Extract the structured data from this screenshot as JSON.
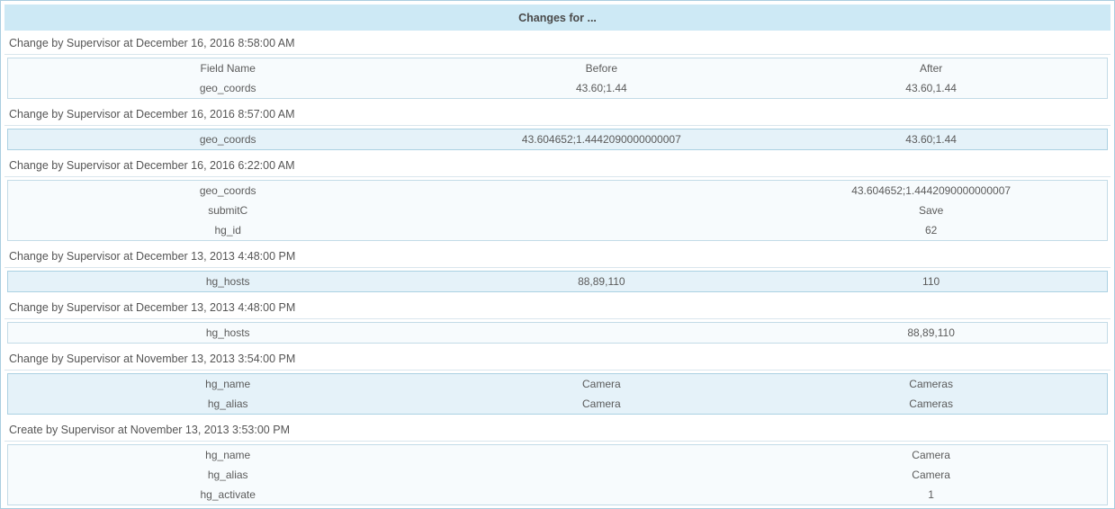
{
  "title": "Changes for ...",
  "table": {
    "columns": [
      {
        "key": "field",
        "label": "Field Name"
      },
      {
        "key": "before",
        "label": "Before"
      },
      {
        "key": "after",
        "label": "After"
      }
    ]
  },
  "sections": [
    {
      "header": "Change by Supervisor at December 16, 2016 8:58:00 AM",
      "show_columns": true,
      "rows": [
        {
          "field": "geo_coords",
          "before": "43.60;1.44",
          "after": "43.60,1.44"
        }
      ]
    },
    {
      "header": "Change by Supervisor at December 16, 2016 8:57:00 AM",
      "show_columns": false,
      "rows": [
        {
          "field": "geo_coords",
          "before": "43.604652;1.4442090000000007",
          "after": "43.60;1.44"
        }
      ]
    },
    {
      "header": "Change by Supervisor at December 16, 2016 6:22:00 AM",
      "show_columns": false,
      "rows": [
        {
          "field": "geo_coords",
          "before": "",
          "after": "43.604652;1.4442090000000007"
        },
        {
          "field": "submitC",
          "before": "",
          "after": "Save"
        },
        {
          "field": "hg_id",
          "before": "",
          "after": "62"
        }
      ]
    },
    {
      "header": "Change by Supervisor at December 13, 2013 4:48:00 PM",
      "show_columns": false,
      "rows": [
        {
          "field": "hg_hosts",
          "before": "88,89,110",
          "after": "110"
        }
      ]
    },
    {
      "header": "Change by Supervisor at December 13, 2013 4:48:00 PM",
      "show_columns": false,
      "rows": [
        {
          "field": "hg_hosts",
          "before": "",
          "after": "88,89,110"
        }
      ]
    },
    {
      "header": "Change by Supervisor at November 13, 2013 3:54:00 PM",
      "show_columns": false,
      "rows": [
        {
          "field": "hg_name",
          "before": "Camera",
          "after": "Cameras"
        },
        {
          "field": "hg_alias",
          "before": "Camera",
          "after": "Cameras"
        }
      ]
    },
    {
      "header": "Create by Supervisor at November 13, 2013 3:53:00 PM",
      "show_columns": false,
      "rows": [
        {
          "field": "hg_name",
          "before": "",
          "after": "Camera"
        },
        {
          "field": "hg_alias",
          "before": "",
          "after": "Camera"
        },
        {
          "field": "hg_activate",
          "before": "",
          "after": "1"
        }
      ]
    }
  ],
  "colors": {
    "accent_band": "#cde9f5",
    "page_border": "#a9cde0",
    "table_pale_bg": "#f7fbfd",
    "table_pale_border": "#c3dbe7",
    "table_tint_bg": "#e5f2f9",
    "table_tint_border": "#abd1e2",
    "text": "#555555"
  }
}
